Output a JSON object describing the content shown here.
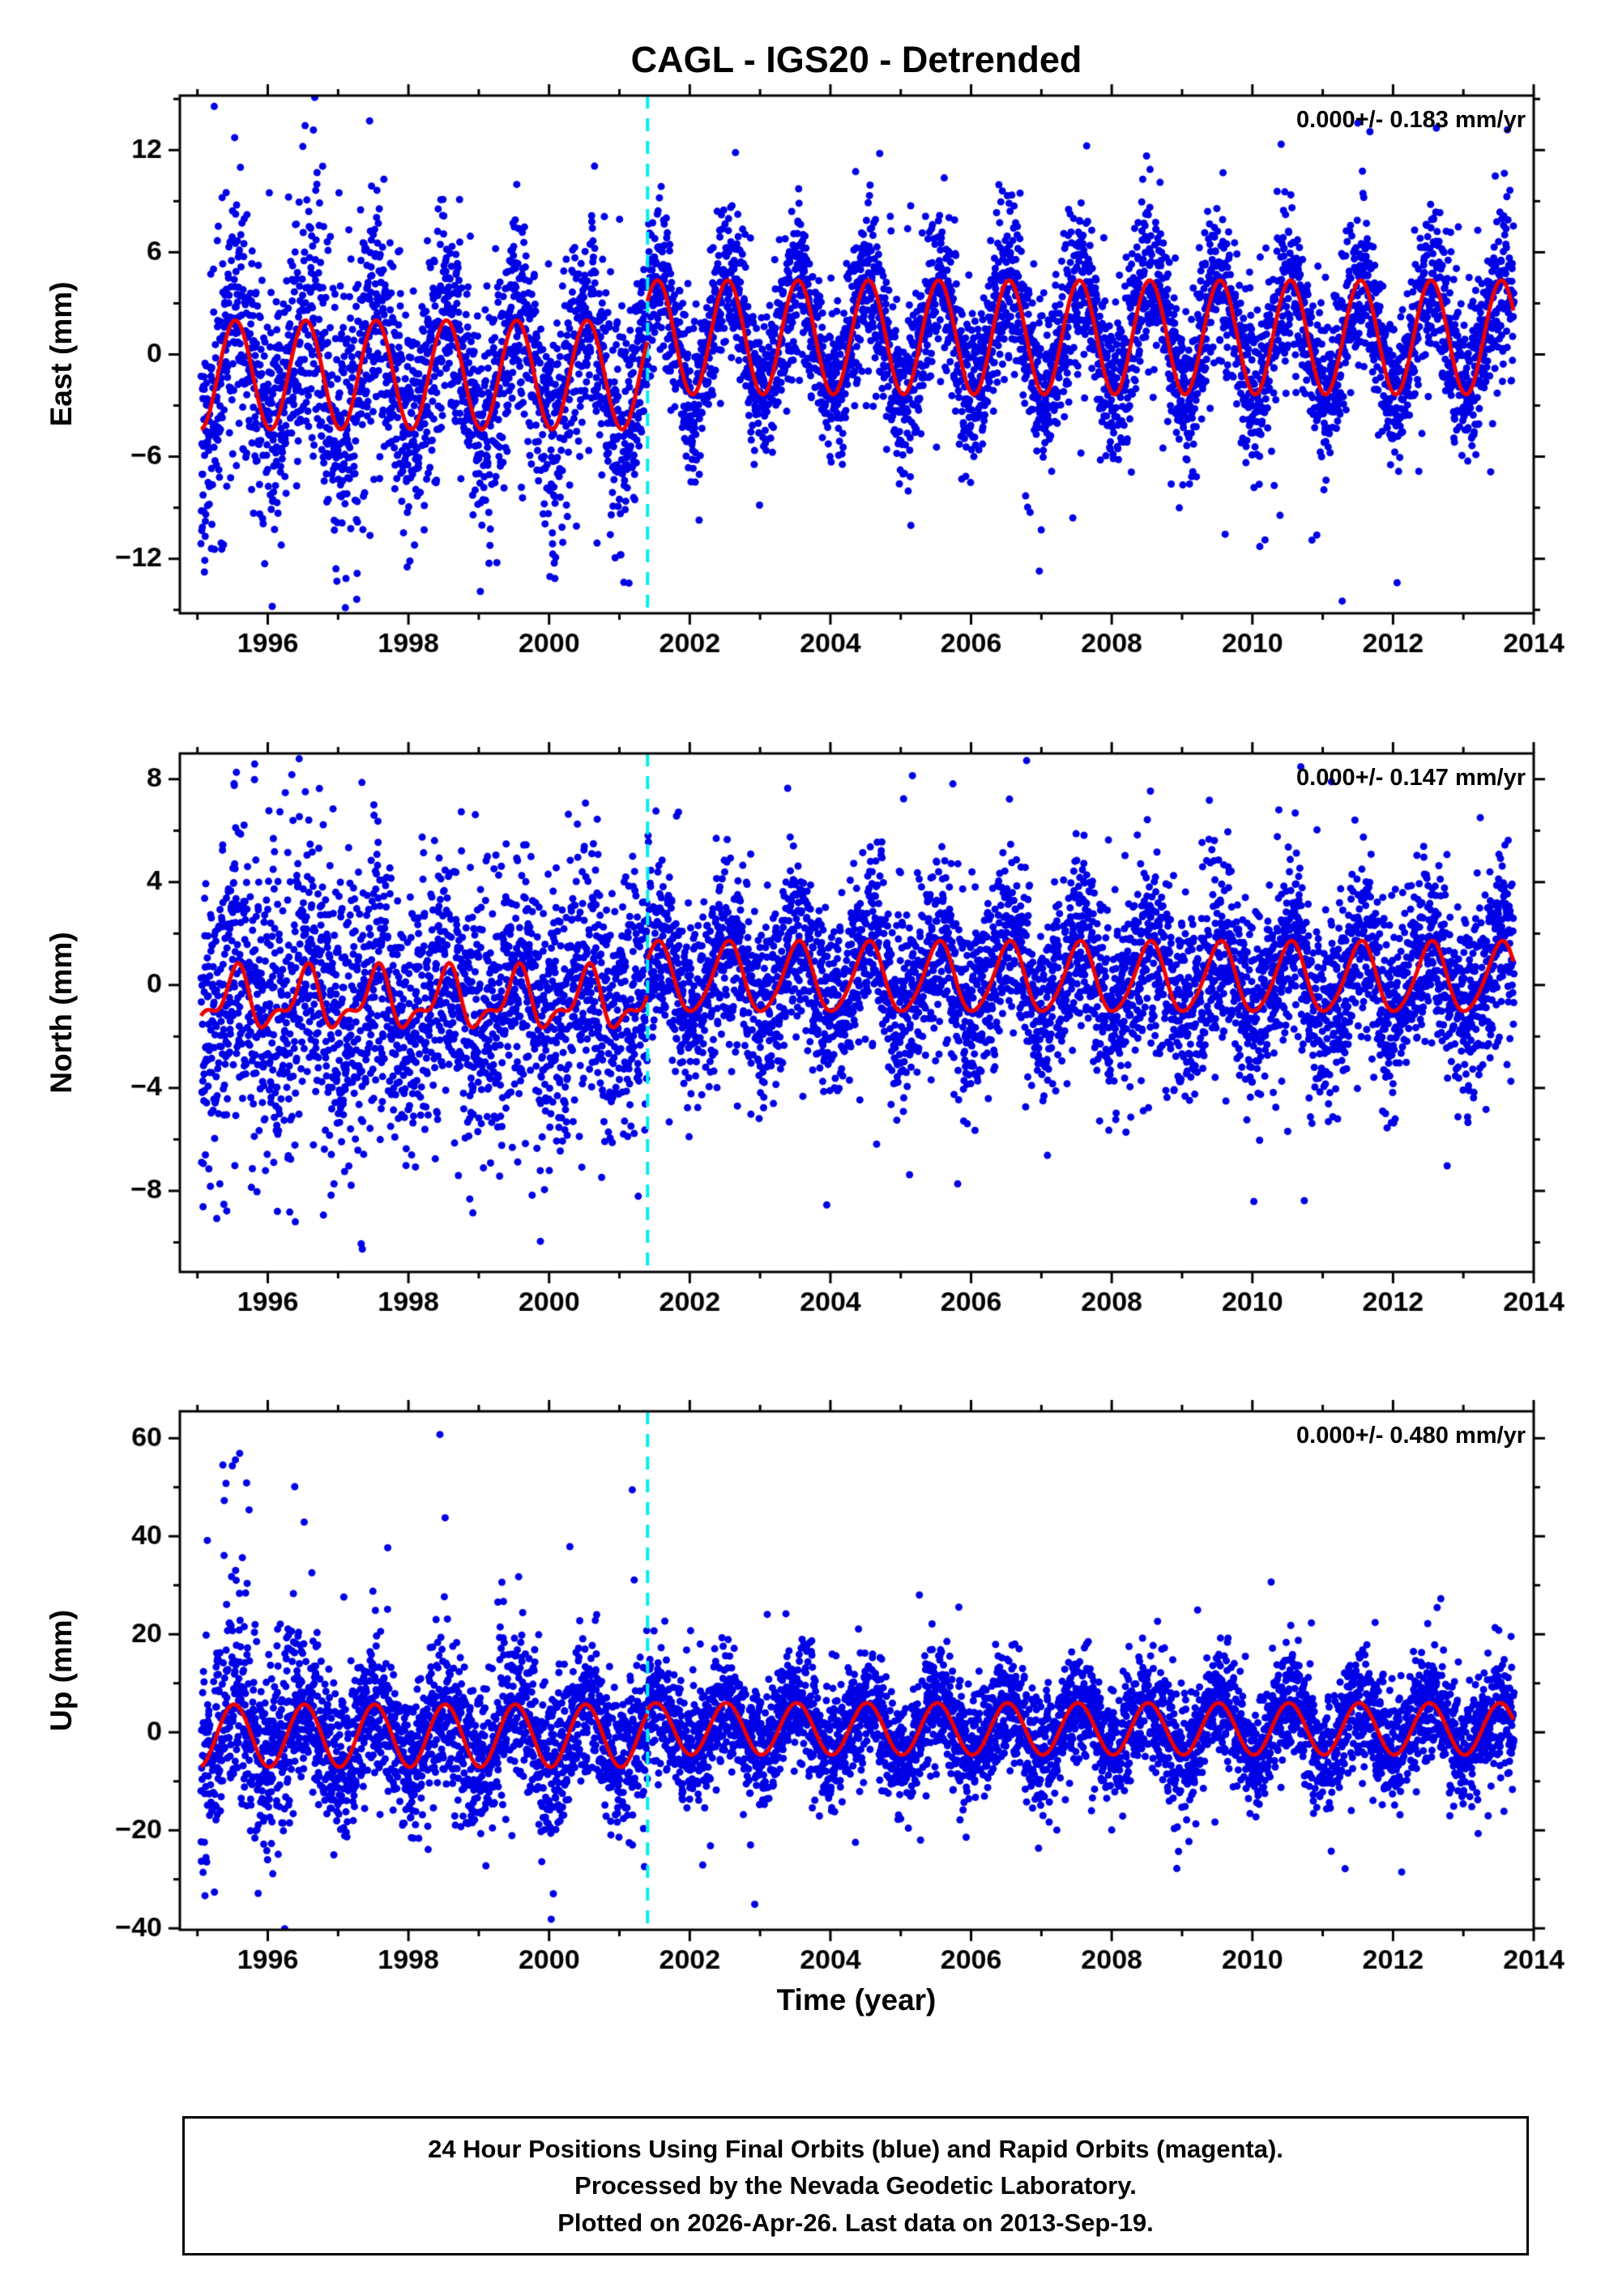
{
  "chart_data": {
    "type": "scatter",
    "title": "CAGL - IGS20 - Detrended",
    "xlabel": "Time (year)",
    "x_range": [
      1994.75,
      2014.0
    ],
    "x_major_ticks": [
      1996,
      1998,
      2000,
      2002,
      2004,
      2006,
      2008,
      2010,
      2012,
      2014
    ],
    "x_minor_step": 1,
    "data_start": 1995.05,
    "data_end": 2013.72,
    "break_line_x": 2001.4,
    "sampling": {
      "step_days": 1,
      "keep_prob": 0.93
    },
    "colors": {
      "point": "#0000e6",
      "fit": "#ee0000",
      "break_line": "#00eeee",
      "frame": "#000000"
    },
    "legend": {
      "final_orbits": "blue",
      "rapid_orbits": "magenta"
    },
    "panels": [
      {
        "name": "East",
        "ylabel": "East (mm)",
        "annotation": "0.000+/- 0.183 mm/yr",
        "rate": 0.0,
        "rate_uncertainty_mm_yr": 0.183,
        "y_range": [
          -15.2,
          15.2
        ],
        "y_major_ticks": [
          12,
          6,
          0,
          -6,
          -12
        ],
        "y_minor_step": 3,
        "seed": 1234567,
        "fit": {
          "pre": {
            "mean": -1.2,
            "annual_amp": 3.2,
            "annual_phase": 0.54,
            "semi_amp": 0.0,
            "semi_phase": 0.1
          },
          "post": {
            "mean": 1.0,
            "annual_amp": 3.35,
            "annual_phase": 0.54,
            "semi_amp": 0.0,
            "semi_phase": 0.1
          }
        },
        "noise": {
          "segments": [
            {
              "until": 1997.6,
              "sigma": 4.0
            },
            {
              "until": 2001.4,
              "sigma": 3.3
            },
            {
              "until": 2014.1,
              "sigma": 2.3
            }
          ],
          "outlier_frac": 0.05,
          "outlier_scale": 2.4
        }
      },
      {
        "name": "North",
        "ylabel": "North (mm)",
        "annotation": "0.000+/- 0.147 mm/yr",
        "rate": 0.0,
        "rate_uncertainty_mm_yr": 0.147,
        "y_range": [
          -11.15,
          9.0
        ],
        "y_major_ticks": [
          8,
          4,
          0,
          -4,
          -8
        ],
        "y_minor_step": 2,
        "seed": 7654321,
        "fit": {
          "pre": {
            "mean": -0.6,
            "annual_amp": 1.0,
            "annual_phase": 0.54,
            "semi_amp": 0.5,
            "semi_phase": 0.1
          },
          "post": {
            "mean": 0.25,
            "annual_amp": 1.35,
            "annual_phase": 0.54,
            "semi_amp": 0.15,
            "semi_phase": 0.1
          }
        },
        "noise": {
          "segments": [
            {
              "until": 1997.6,
              "sigma": 2.9
            },
            {
              "until": 2001.4,
              "sigma": 2.5
            },
            {
              "until": 2014.1,
              "sigma": 1.75
            }
          ],
          "outlier_frac": 0.05,
          "outlier_scale": 2.3
        }
      },
      {
        "name": "Up",
        "ylabel": "Up (mm)",
        "annotation": "0.000+/- 0.480 mm/yr",
        "rate": 0.0,
        "rate_uncertainty_mm_yr": 0.48,
        "y_range": [
          -40.3,
          65.5
        ],
        "y_major_ticks": [
          60,
          40,
          20,
          0,
          -20,
          -40
        ],
        "y_minor_step": 10,
        "seed": 24681357,
        "fit": {
          "pre": {
            "mean": -0.7,
            "annual_amp": 6.4,
            "annual_phase": 0.52,
            "semi_amp": 0.0,
            "semi_phase": 0.1
          },
          "post": {
            "mean": 0.7,
            "annual_amp": 5.3,
            "annual_phase": 0.52,
            "semi_amp": 0.0,
            "semi_phase": 0.1
          }
        },
        "noise": {
          "segments": [
            {
              "until": 1996.4,
              "sigma": 10.0
            },
            {
              "until": 2001.4,
              "sigma": 7.5
            },
            {
              "until": 2014.1,
              "sigma": 5.6
            }
          ],
          "outlier_frac": 0.05,
          "outlier_scale": 2.2
        },
        "spikes": {
          "t_start": 1995.35,
          "t_end": 1995.75,
          "prob": 0.12,
          "min": 28,
          "max": 62
        }
      }
    ]
  },
  "footer": {
    "lines": [
      "24 Hour Positions Using Final Orbits (blue) and Rapid Orbits (magenta).",
      "Processed by the Nevada Geodetic Laboratory.",
      "Plotted on 2026-Apr-26. Last data on 2013-Sep-19."
    ]
  }
}
